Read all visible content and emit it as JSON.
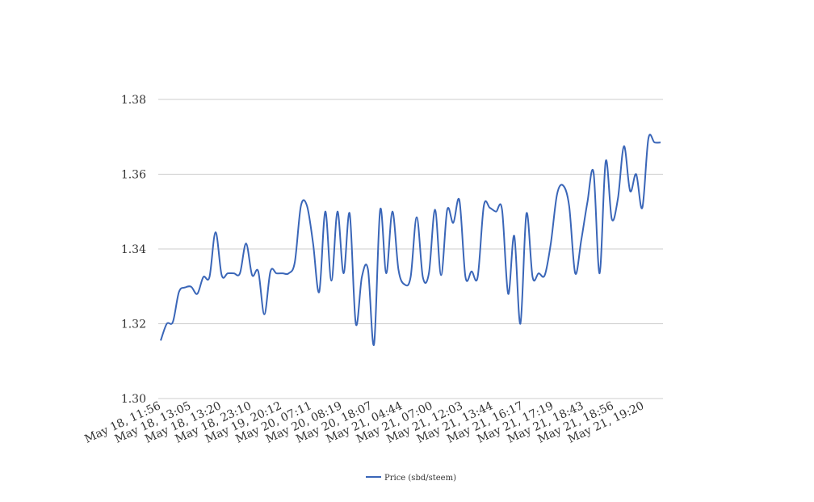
{
  "chart_data": {
    "type": "line",
    "title": "",
    "xlabel": "",
    "ylabel": "",
    "ylim": [
      1.3,
      1.38
    ],
    "y_ticks": [
      "1.30",
      "1.32",
      "1.34",
      "1.36",
      "1.38"
    ],
    "y_tick_values": [
      1.3,
      1.32,
      1.34,
      1.36,
      1.38
    ],
    "x_tick_labels": [
      "May 18, 11:56",
      "May 18, 13:05",
      "May 18, 13:20",
      "May 18, 23:10",
      "May 19, 20:12",
      "May 20, 07:11",
      "May 20, 08:19",
      "May 20, 18:07",
      "May 21, 04:44",
      "May 21, 07:00",
      "May 21, 12:03",
      "May 21, 13:44",
      "May 21, 16:17",
      "May 21, 17:19",
      "May 21, 18:43",
      "May 21, 18:56",
      "May 21, 19:20"
    ],
    "grid": "horizontal",
    "legend_position": "bottom",
    "line_color": "#3a66b8",
    "series": [
      {
        "name": "Price (sbd/steem)",
        "values": [
          1.3155,
          1.32,
          1.3205,
          1.3285,
          1.3297,
          1.3299,
          1.328,
          1.3325,
          1.3325,
          1.3445,
          1.333,
          1.3335,
          1.3335,
          1.3335,
          1.3415,
          1.333,
          1.334,
          1.3225,
          1.334,
          1.3335,
          1.3335,
          1.3335,
          1.3365,
          1.3515,
          1.3515,
          1.3415,
          1.3285,
          1.35,
          1.3315,
          1.35,
          1.3335,
          1.3495,
          1.32,
          1.3325,
          1.3345,
          1.3145,
          1.3505,
          1.3335,
          1.35,
          1.3345,
          1.3305,
          1.3325,
          1.3485,
          1.3325,
          1.3335,
          1.3505,
          1.333,
          1.3505,
          1.347,
          1.353,
          1.3325,
          1.334,
          1.3325,
          1.3515,
          1.351,
          1.35,
          1.3505,
          1.328,
          1.3435,
          1.32,
          1.3495,
          1.3325,
          1.3335,
          1.333,
          1.3415,
          1.3545,
          1.357,
          1.3515,
          1.3335,
          1.3425,
          1.3525,
          1.3605,
          1.3335,
          1.3635,
          1.348,
          1.3535,
          1.3675,
          1.3555,
          1.36,
          1.351,
          1.3695,
          1.3685,
          1.3685
        ]
      }
    ]
  }
}
